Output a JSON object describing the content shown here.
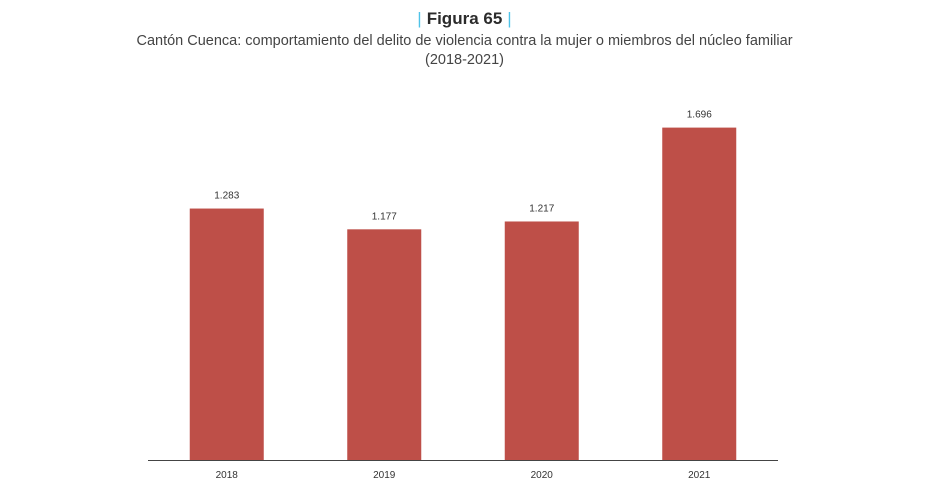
{
  "figure": {
    "label": "Figura 65",
    "title_line1": "Cantón Cuenca: comportamiento del delito de violencia contra la mujer o miembros del núcleo familiar",
    "title_line2": "(2018-2021)"
  },
  "colors": {
    "bar": "#be4f48",
    "accent": "#4fc3e8",
    "axis": "#444444"
  },
  "chart_data": {
    "type": "bar",
    "categories": [
      "2018",
      "2019",
      "2020",
      "2021"
    ],
    "values": [
      1283,
      1177,
      1217,
      1696
    ],
    "value_labels": [
      "1.283",
      "1.177",
      "1.217",
      "1.696"
    ],
    "ylim": [
      0,
      1796
    ],
    "grid": false,
    "legend": "none"
  }
}
